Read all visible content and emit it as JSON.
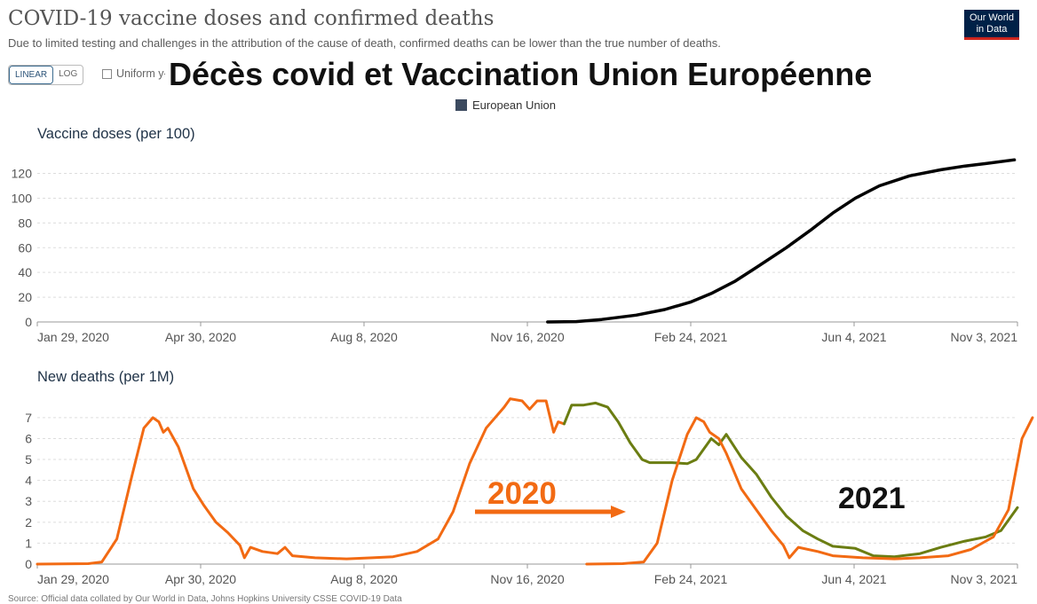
{
  "header": {
    "title": "COVID-19 vaccine doses and confirmed deaths",
    "subtitle": "Due to limited testing and challenges in the attribution of the cause of death, confirmed deaths can be lower than the true number of deaths.",
    "logo_line1": "Our World",
    "logo_line2": "in Data"
  },
  "controls": {
    "linear_label": "LINEAR",
    "log_label": "LOG",
    "uniform_label": "Uniform y-axis"
  },
  "overlay": {
    "title": "Décès covid et Vaccination Union Européenne",
    "label_2020": "2020",
    "label_2021": "2021"
  },
  "legend": {
    "label": "European Union",
    "color": "#3c4a5f"
  },
  "colors": {
    "vaccine": "#000000",
    "deaths": "#f26a13",
    "deaths_shifted": "#6b7d12"
  },
  "chart_data": [
    {
      "type": "line",
      "title": "Vaccine doses (per 100)",
      "x_ticks": [
        "Jan 29, 2020",
        "Apr 30, 2020",
        "Aug 8, 2020",
        "Nov 16, 2020",
        "Feb 24, 2021",
        "Jun 4, 2021",
        "Nov 3, 2021"
      ],
      "y_ticks": [
        0,
        20,
        40,
        60,
        80,
        100,
        120
      ],
      "xlim": [
        "2020-01-22",
        "2021-11-05"
      ],
      "ylim": [
        0,
        134
      ],
      "grid": true,
      "series": [
        {
          "name": "European Union",
          "points": [
            [
              "2020-12-27",
              0
            ],
            [
              "2021-01-15",
              0.3
            ],
            [
              "2021-02-01",
              2
            ],
            [
              "2021-02-24",
              5.5
            ],
            [
              "2021-03-15",
              10
            ],
            [
              "2021-04-01",
              16
            ],
            [
              "2021-04-15",
              23
            ],
            [
              "2021-05-01",
              33
            ],
            [
              "2021-05-15",
              44
            ],
            [
              "2021-06-04",
              60
            ],
            [
              "2021-06-20",
              74
            ],
            [
              "2021-07-05",
              88
            ],
            [
              "2021-07-20",
              100
            ],
            [
              "2021-08-05",
              110
            ],
            [
              "2021-08-25",
              118
            ],
            [
              "2021-09-15",
              123
            ],
            [
              "2021-10-01",
              126
            ],
            [
              "2021-10-15",
              128
            ],
            [
              "2021-11-03",
              131
            ]
          ]
        }
      ]
    },
    {
      "type": "line",
      "title": "New deaths (per 1M)",
      "x_ticks": [
        "Jan 29, 2020",
        "Apr 30, 2020",
        "Aug 8, 2020",
        "Nov 16, 2020",
        "Feb 24, 2021",
        "Jun 4, 2021",
        "Nov 3, 2021"
      ],
      "y_ticks": [
        0,
        1,
        2,
        3,
        4,
        5,
        6,
        7
      ],
      "xlim": [
        "2020-01-22",
        "2021-11-05"
      ],
      "ylim": [
        0,
        7.8
      ],
      "grid": true,
      "series": [
        {
          "name": "European Union",
          "color": "#f26a13",
          "points": [
            [
              "2020-01-22",
              0
            ],
            [
              "2020-02-25",
              0.02
            ],
            [
              "2020-03-05",
              0.1
            ],
            [
              "2020-03-15",
              1.2
            ],
            [
              "2020-03-25",
              4.2
            ],
            [
              "2020-04-02",
              6.5
            ],
            [
              "2020-04-08",
              7.0
            ],
            [
              "2020-04-12",
              6.8
            ],
            [
              "2020-04-15",
              6.3
            ],
            [
              "2020-04-18",
              6.5
            ],
            [
              "2020-04-25",
              5.6
            ],
            [
              "2020-05-05",
              3.6
            ],
            [
              "2020-05-12",
              2.8
            ],
            [
              "2020-05-20",
              2.0
            ],
            [
              "2020-05-28",
              1.5
            ],
            [
              "2020-06-05",
              0.9
            ],
            [
              "2020-06-08",
              0.3
            ],
            [
              "2020-06-12",
              0.8
            ],
            [
              "2020-06-20",
              0.6
            ],
            [
              "2020-06-30",
              0.5
            ],
            [
              "2020-07-05",
              0.8
            ],
            [
              "2020-07-10",
              0.4
            ],
            [
              "2020-07-25",
              0.3
            ],
            [
              "2020-08-15",
              0.25
            ],
            [
              "2020-09-01",
              0.3
            ],
            [
              "2020-09-15",
              0.35
            ],
            [
              "2020-10-01",
              0.6
            ],
            [
              "2020-10-15",
              1.2
            ],
            [
              "2020-10-25",
              2.5
            ],
            [
              "2020-11-05",
              4.8
            ],
            [
              "2020-11-16",
              6.5
            ],
            [
              "2020-11-28",
              7.5
            ],
            [
              "2020-12-02",
              7.9
            ],
            [
              "2020-12-10",
              7.8
            ],
            [
              "2020-12-15",
              7.4
            ],
            [
              "2020-12-20",
              7.8
            ],
            [
              "2020-12-26",
              7.8
            ],
            [
              "2020-12-31",
              6.3
            ],
            [
              "2021-01-03",
              6.8
            ],
            [
              "2021-01-07",
              6.7
            ]
          ]
        },
        {
          "name": "European Union",
          "color": "#6b7d12",
          "points": [
            [
              "2021-01-07",
              6.7
            ],
            [
              "2021-01-12",
              7.6
            ],
            [
              "2021-01-20",
              7.6
            ],
            [
              "2021-01-28",
              7.7
            ],
            [
              "2021-02-05",
              7.5
            ],
            [
              "2021-02-12",
              6.8
            ],
            [
              "2021-02-20",
              5.8
            ],
            [
              "2021-02-28",
              5.0
            ],
            [
              "2021-03-05",
              4.85
            ],
            [
              "2021-03-20",
              4.85
            ],
            [
              "2021-03-30",
              4.8
            ],
            [
              "2021-04-05",
              5.0
            ],
            [
              "2021-04-15",
              6.0
            ],
            [
              "2021-04-20",
              5.7
            ],
            [
              "2021-04-25",
              6.2
            ],
            [
              "2021-05-05",
              5.1
            ],
            [
              "2021-05-15",
              4.3
            ],
            [
              "2021-05-25",
              3.2
            ],
            [
              "2021-06-04",
              2.3
            ],
            [
              "2021-06-15",
              1.6
            ],
            [
              "2021-06-25",
              1.2
            ],
            [
              "2021-07-05",
              0.85
            ],
            [
              "2021-07-20",
              0.75
            ],
            [
              "2021-08-01",
              0.4
            ],
            [
              "2021-08-15",
              0.35
            ],
            [
              "2021-09-01",
              0.5
            ],
            [
              "2021-09-15",
              0.8
            ],
            [
              "2021-10-01",
              1.1
            ],
            [
              "2021-10-15",
              1.3
            ],
            [
              "2021-10-25",
              1.6
            ],
            [
              "2021-11-05",
              2.7
            ]
          ]
        },
        {
          "name": "European Union",
          "color": "#f26a13",
          "points": [
            [
              "2021-01-22",
              0
            ],
            [
              "2021-02-15",
              0.02
            ],
            [
              "2021-03-01",
              0.1
            ],
            [
              "2021-03-10",
              1.0
            ],
            [
              "2021-03-20",
              4.0
            ],
            [
              "2021-03-30",
              6.2
            ],
            [
              "2021-04-05",
              7.0
            ],
            [
              "2021-04-10",
              6.8
            ],
            [
              "2021-04-14",
              6.3
            ],
            [
              "2021-04-20",
              6.0
            ],
            [
              "2021-04-25",
              5.3
            ],
            [
              "2021-05-05",
              3.6
            ],
            [
              "2021-05-15",
              2.6
            ],
            [
              "2021-05-25",
              1.6
            ],
            [
              "2021-06-02",
              0.9
            ],
            [
              "2021-06-06",
              0.3
            ],
            [
              "2021-06-12",
              0.8
            ],
            [
              "2021-06-25",
              0.6
            ],
            [
              "2021-07-05",
              0.4
            ],
            [
              "2021-07-25",
              0.3
            ],
            [
              "2021-08-15",
              0.25
            ],
            [
              "2021-09-01",
              0.3
            ],
            [
              "2021-09-20",
              0.4
            ],
            [
              "2021-10-05",
              0.7
            ],
            [
              "2021-10-20",
              1.3
            ],
            [
              "2021-10-30",
              2.6
            ],
            [
              "2021-11-08",
              6.0
            ],
            [
              "2021-11-15",
              7.0
            ]
          ]
        }
      ]
    }
  ],
  "source_text": "Source: Official data collated by Our World in Data, Johns Hopkins University CSSE COVID-19 Data"
}
